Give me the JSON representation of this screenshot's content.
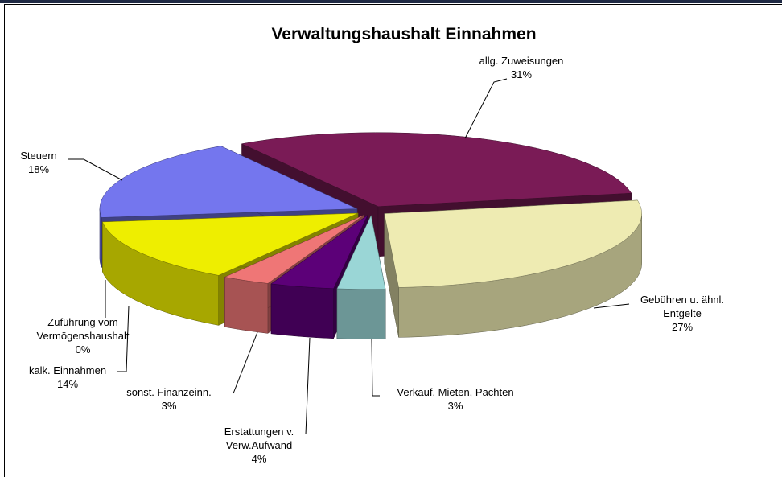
{
  "chart_data": {
    "type": "pie3d",
    "title": "Verwaltungshaushalt Einnahmen",
    "categories": [
      "allg. Zuweisungen",
      "Gebühren u. ähnl.\nEntgelte",
      "Verkauf, Mieten, Pachten",
      "Erstattungen v.\nVerw.Aufwand",
      "sonst. Finanzeinn.",
      "kalk. Einnahmen",
      "Zuführung  vom\nVermögenshaushalt",
      "Steuern"
    ],
    "values": [
      31,
      27,
      3,
      4,
      3,
      14,
      0,
      18
    ],
    "value_labels": [
      "31%",
      "27%",
      "3%",
      "4%",
      "3%",
      "14%",
      "0%",
      "18%"
    ],
    "colors": [
      "#7a1b56",
      "#eeebb2",
      "#9ad6d6",
      "#5c0078",
      "#ef7676",
      "#eeee00",
      "#9a9aee",
      "#7476ee"
    ]
  }
}
